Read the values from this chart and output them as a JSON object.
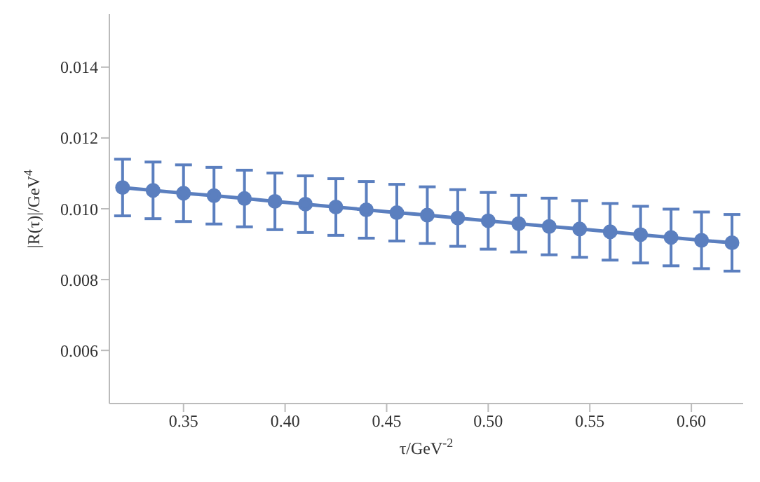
{
  "chart_data": {
    "type": "line",
    "xlabel": "τ/GeV$^{-2}$",
    "ylabel": "|R(τ)|/GeV$^{4}$",
    "x": [
      0.32,
      0.335,
      0.35,
      0.365,
      0.38,
      0.395,
      0.41,
      0.425,
      0.44,
      0.455,
      0.47,
      0.485,
      0.5,
      0.515,
      0.53,
      0.545,
      0.56,
      0.575,
      0.59,
      0.605,
      0.62
    ],
    "series": [
      {
        "color": "#5b7fbf",
        "values": [
          0.0106,
          0.01052,
          0.01044,
          0.01037,
          0.01029,
          0.01021,
          0.01013,
          0.01005,
          0.00997,
          0.00989,
          0.00982,
          0.00974,
          0.00966,
          0.00958,
          0.0095,
          0.00943,
          0.00935,
          0.00927,
          0.00919,
          0.00911,
          0.00904
        ],
        "errors": [
          0.0008,
          0.0008,
          0.0008,
          0.0008,
          0.0008,
          0.0008,
          0.0008,
          0.0008,
          0.0008,
          0.0008,
          0.0008,
          0.0008,
          0.0008,
          0.0008,
          0.0008,
          0.0008,
          0.0008,
          0.0008,
          0.0008,
          0.0008,
          0.0008
        ]
      }
    ],
    "xlim": [
      0.3135,
      0.6255
    ],
    "xticks": [
      {
        "value": 0.35,
        "label": "0.35"
      },
      {
        "value": 0.4,
        "label": "0.40"
      },
      {
        "value": 0.45,
        "label": "0.45"
      },
      {
        "value": 0.5,
        "label": "0.50"
      },
      {
        "value": 0.55,
        "label": "0.55"
      },
      {
        "value": 0.6,
        "label": "0.60"
      }
    ],
    "ylim": [
      0.0045,
      0.0155
    ],
    "yticks": [
      {
        "value": 0.006,
        "label": "0.006"
      },
      {
        "value": 0.008,
        "label": "0.008"
      },
      {
        "value": 0.01,
        "label": "0.010"
      },
      {
        "value": 0.012,
        "label": "0.012"
      },
      {
        "value": 0.014,
        "label": "0.014"
      }
    ],
    "marker": "circle",
    "line_style": "solid"
  }
}
